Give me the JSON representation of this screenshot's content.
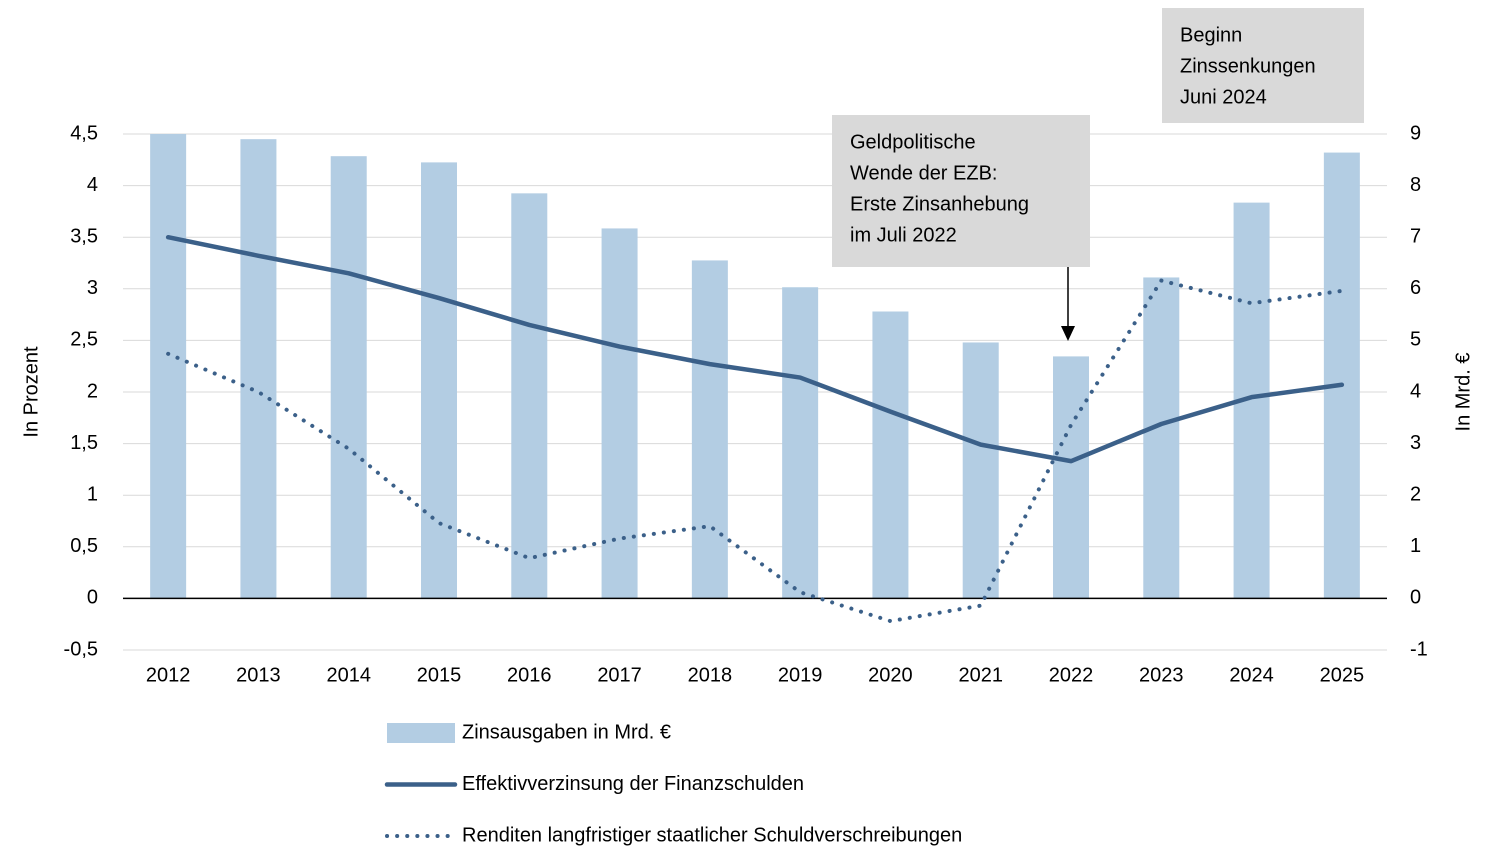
{
  "chart_data": {
    "type": "combo",
    "categories": [
      "2012",
      "2013",
      "2014",
      "2015",
      "2016",
      "2017",
      "2018",
      "2019",
      "2020",
      "2021",
      "2022",
      "2023",
      "2024",
      "2025"
    ],
    "series": [
      {
        "name": "Zinsausgaben in Mrd. €",
        "type": "bar",
        "axis": "y2",
        "color": "#b3cde3",
        "values": [
          9.0,
          8.9,
          8.57,
          8.45,
          7.85,
          7.17,
          6.55,
          6.03,
          5.56,
          4.96,
          4.69,
          6.22,
          7.67,
          8.64
        ]
      },
      {
        "name": "Effektivverzinsung der Finanzschulden",
        "type": "line",
        "style": "solid",
        "color": "#3b6089",
        "values": [
          3.5,
          3.32,
          3.15,
          2.91,
          2.65,
          2.44,
          2.27,
          2.14,
          1.81,
          1.49,
          1.33,
          1.69,
          1.95,
          2.07
        ]
      },
      {
        "name": "Renditen langfristiger staatlicher Schuldverschreibungen",
        "type": "line",
        "style": "dotted",
        "color": "#3b6089",
        "values": [
          2.37,
          2.0,
          1.45,
          0.73,
          0.39,
          0.58,
          0.7,
          0.06,
          -0.22,
          -0.07,
          1.68,
          3.08,
          2.86,
          2.98
        ]
      }
    ],
    "ylabel": "In Prozent",
    "y2label": "In Mrd. €",
    "ylim": [
      -0.5,
      4.5
    ],
    "yticks": [
      {
        "value": -0.5,
        "label": "-0,5"
      },
      0,
      {
        "value": 0.5,
        "label": "0,5"
      },
      1,
      {
        "value": 1.5,
        "label": "1,5"
      },
      2,
      {
        "value": 2.5,
        "label": "2,5"
      },
      3,
      {
        "value": 3.5,
        "label": "3,5"
      },
      4,
      {
        "value": 4.5,
        "label": "4,5"
      }
    ],
    "y2lim": [
      -1,
      9
    ],
    "y2ticks": [
      -1,
      0,
      1,
      2,
      3,
      4,
      5,
      6,
      7,
      8,
      9
    ],
    "grid": true,
    "annotations": [
      {
        "lines": [
          "Geldpolitische",
          "Wende der EZB:",
          "Erste Zinsanhebung",
          "im Juli 2022"
        ]
      },
      {
        "lines": [
          "Beginn",
          "Zinssenkungen",
          "Juni 2024"
        ]
      }
    ]
  }
}
